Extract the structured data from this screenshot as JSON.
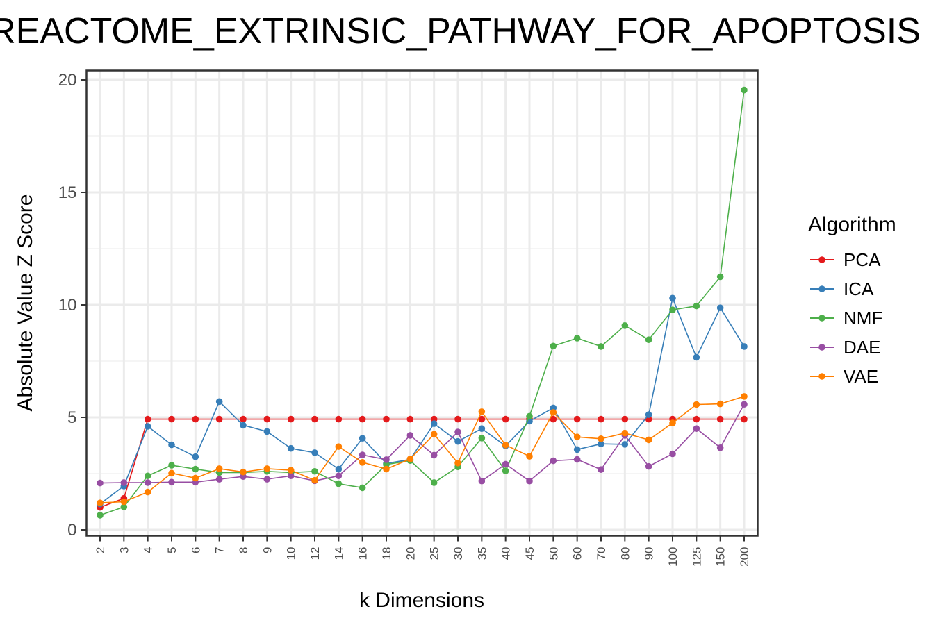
{
  "chart_data": {
    "type": "line",
    "title": "REACTOME_EXTRINSIC_PATHWAY_FOR_APOPTOSIS",
    "xlabel": "k Dimensions",
    "ylabel": "Absolute Value Z Score",
    "ylim": [
      0,
      20
    ],
    "yticks": [
      0,
      5,
      10,
      15,
      20
    ],
    "grid": true,
    "legend_title": "Algorithm",
    "legend_position": "right",
    "categories": [
      "2",
      "3",
      "4",
      "5",
      "6",
      "7",
      "8",
      "9",
      "10",
      "12",
      "14",
      "16",
      "18",
      "20",
      "25",
      "30",
      "35",
      "40",
      "45",
      "50",
      "60",
      "70",
      "80",
      "90",
      "100",
      "125",
      "150",
      "200"
    ],
    "series": [
      {
        "name": "PCA",
        "color": "#e41a1c",
        "values": [
          1.0,
          1.4,
          4.92,
          4.92,
          4.92,
          4.92,
          4.92,
          4.92,
          4.92,
          4.92,
          4.92,
          4.92,
          4.92,
          4.92,
          4.92,
          4.92,
          4.92,
          4.92,
          4.92,
          4.92,
          4.92,
          4.92,
          4.92,
          4.92,
          4.92,
          4.92,
          4.92,
          4.92
        ]
      },
      {
        "name": "ICA",
        "color": "#377eb8",
        "values": [
          1.15,
          1.95,
          4.6,
          3.78,
          3.25,
          5.7,
          4.65,
          4.37,
          3.62,
          3.43,
          2.7,
          4.07,
          2.95,
          3.13,
          4.72,
          3.93,
          4.5,
          3.73,
          4.83,
          5.42,
          3.57,
          3.82,
          3.8,
          5.12,
          10.3,
          7.67,
          9.87,
          8.15
        ]
      },
      {
        "name": "NMF",
        "color": "#4daf4a",
        "values": [
          0.65,
          1.02,
          2.4,
          2.87,
          2.7,
          2.55,
          2.55,
          2.6,
          2.55,
          2.6,
          2.05,
          1.87,
          2.9,
          3.08,
          2.1,
          2.8,
          4.08,
          2.62,
          5.05,
          8.17,
          8.52,
          8.15,
          9.08,
          8.45,
          9.78,
          9.95,
          11.25,
          19.55
        ]
      },
      {
        "name": "DAE",
        "color": "#984ea3",
        "values": [
          2.08,
          2.1,
          2.1,
          2.12,
          2.12,
          2.25,
          2.37,
          2.25,
          2.4,
          2.18,
          2.4,
          3.33,
          3.12,
          4.2,
          3.32,
          4.35,
          2.17,
          2.92,
          2.17,
          3.07,
          3.13,
          2.68,
          4.2,
          2.82,
          3.38,
          4.5,
          3.65,
          5.58
        ]
      },
      {
        "name": "VAE",
        "color": "#ff7f00",
        "values": [
          1.2,
          1.25,
          1.68,
          2.52,
          2.3,
          2.72,
          2.57,
          2.72,
          2.65,
          2.2,
          3.7,
          3.0,
          2.7,
          3.15,
          4.25,
          2.97,
          5.25,
          3.77,
          3.27,
          5.22,
          4.13,
          4.05,
          4.3,
          4.0,
          4.75,
          5.57,
          5.6,
          5.93
        ]
      }
    ]
  }
}
